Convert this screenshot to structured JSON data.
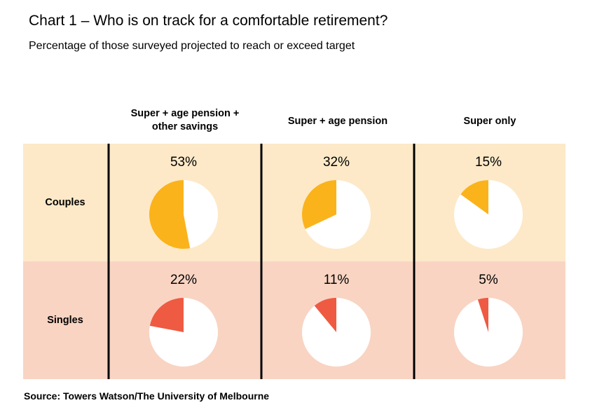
{
  "title": "Chart 1 – Who is on track for a comfortable retirement?",
  "subtitle": "Percentage of those surveyed projected to reach or exceed target",
  "source": "Source: Towers Watson/The University of Melbourne",
  "colors": {
    "couples_bg": "#fde9c8",
    "singles_bg": "#f9d4c3",
    "couples_slice": "#fbb31b",
    "singles_slice": "#ef5a42",
    "remainder": "#ffffff"
  },
  "chart_data": {
    "type": "pie",
    "title": "Chart 1 – Who is on track for a comfortable retirement?",
    "columns": [
      [
        "Super + age pension +",
        "other savings"
      ],
      [
        "Super + age pension"
      ],
      [
        "Super only"
      ]
    ],
    "rows": [
      {
        "name": "Couples",
        "values": [
          53,
          32,
          15
        ],
        "labels": [
          "53%",
          "32%",
          "15%"
        ]
      },
      {
        "name": "Singles",
        "values": [
          22,
          11,
          5
        ],
        "labels": [
          "22%",
          "11%",
          "5%"
        ]
      }
    ],
    "unit": "%"
  }
}
